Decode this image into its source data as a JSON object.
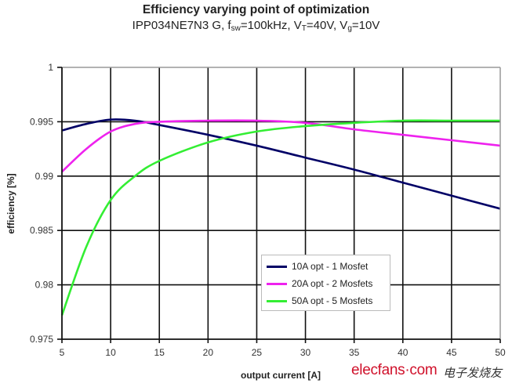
{
  "chart_data": {
    "type": "line",
    "title": "Efficiency varying point of optimization",
    "subtitle": {
      "part": "IPP034NE7N3 G, f",
      "fsw_sub": "sw",
      "fsw_val": "=100kHz, V",
      "vt_sub": "T",
      "vt_val": "=40V, V",
      "vg_sub": "g",
      "vg_val": "=10V"
    },
    "xlabel": "output current [A]",
    "ylabel": "efficiency [%]",
    "xlim": [
      5,
      50
    ],
    "ylim": [
      0.975,
      1.0
    ],
    "xticks": [
      5,
      10,
      15,
      20,
      25,
      30,
      35,
      40,
      45,
      50
    ],
    "yticks": [
      0.975,
      0.98,
      0.985,
      0.99,
      0.995,
      1
    ],
    "ytick_labels": [
      "0.975",
      "0.98",
      "0.985",
      "0.99",
      "0.995",
      "1"
    ],
    "grid": true,
    "legend_position": "lower-center",
    "x": [
      5,
      7.5,
      10,
      12.5,
      15,
      20,
      25,
      30,
      35,
      40,
      45,
      50
    ],
    "series": [
      {
        "name": "10A opt - 1 Mosfet",
        "color": "#000066",
        "values": [
          0.9942,
          0.9948,
          0.9952,
          0.9951,
          0.9947,
          0.9938,
          0.9928,
          0.9917,
          0.9906,
          0.9894,
          0.9882,
          0.987
        ]
      },
      {
        "name": "20A opt - 2 Mosfets",
        "color": "#ee22ee",
        "values": [
          0.9904,
          0.9925,
          0.9941,
          0.9948,
          0.995,
          0.9951,
          0.9951,
          0.9949,
          0.9943,
          0.9938,
          0.9933,
          0.9928
        ]
      },
      {
        "name": "50A opt - 5 Mosfets",
        "color": "#33ee33",
        "values": [
          0.9772,
          0.9835,
          0.9878,
          0.99,
          0.9914,
          0.9931,
          0.9941,
          0.9946,
          0.9949,
          0.9951,
          0.9951,
          0.9951
        ]
      }
    ]
  },
  "watermark": {
    "site": "elecfans·com",
    "cn": "电子发烧友"
  }
}
